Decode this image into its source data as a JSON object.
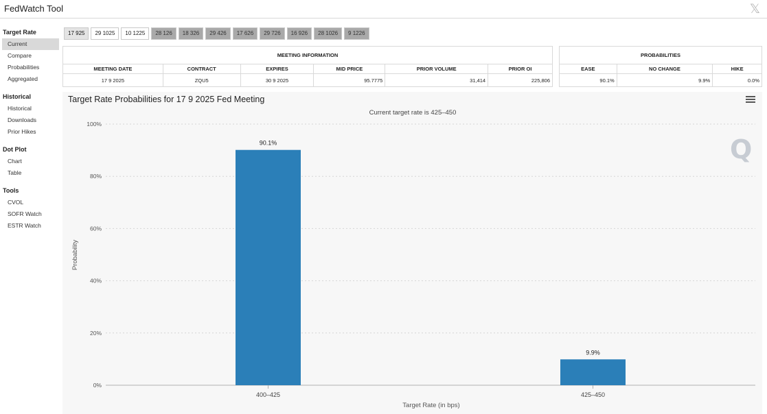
{
  "app": {
    "title": "FedWatch Tool",
    "close_glyph": "𝕏"
  },
  "sidebar": {
    "sections": [
      {
        "heading": "Target Rate",
        "items": [
          "Current",
          "Compare",
          "Probabilities",
          "Aggregated"
        ]
      },
      {
        "heading": "Historical",
        "items": [
          "Historical",
          "Downloads",
          "Prior Hikes"
        ]
      },
      {
        "heading": "Dot Plot",
        "items": [
          "Chart",
          "Table"
        ]
      },
      {
        "heading": "Tools",
        "items": [
          "CVOL",
          "SOFR Watch",
          "ESTR Watch"
        ]
      }
    ]
  },
  "meeting_tabs": [
    "17 925",
    "29 1025",
    "10 1225",
    "28 126",
    "18 326",
    "29 426",
    "17 626",
    "29 726",
    "16 926",
    "28 1026",
    "9 1226"
  ],
  "meeting_info": {
    "section_title": "MEETING INFORMATION",
    "headers": [
      "MEETING DATE",
      "CONTRACT",
      "EXPIRES",
      "MID PRICE",
      "PRIOR VOLUME",
      "PRIOR OI"
    ],
    "row": [
      "17 9 2025",
      "ZQU5",
      "30 9 2025",
      "95.7775",
      "31,414",
      "225,806"
    ]
  },
  "probabilities": {
    "section_title": "PROBABILITIES",
    "headers": [
      "EASE",
      "NO CHANGE",
      "HIKE"
    ],
    "row": [
      "90.1%",
      "9.9%",
      "0.0%"
    ]
  },
  "chart": {
    "title": "Target Rate Probabilities for 17 9 2025 Fed Meeting",
    "watermark": "Q"
  },
  "chart_data": {
    "type": "bar",
    "title": "Target Rate Probabilities for 17 9 2025 Fed Meeting",
    "subtitle": "Current target rate is 425–450",
    "xlabel": "Target Rate (in bps)",
    "ylabel": "Probability",
    "categories": [
      "400–425",
      "425–450"
    ],
    "values": [
      90.1,
      9.9
    ],
    "data_labels": [
      "90.1%",
      "9.9%"
    ],
    "ylim": [
      0,
      100
    ],
    "yticks": [
      "0%",
      "20%",
      "40%",
      "60%",
      "80%",
      "100%"
    ],
    "grid": true,
    "bar_color": "#2b7fb8"
  }
}
